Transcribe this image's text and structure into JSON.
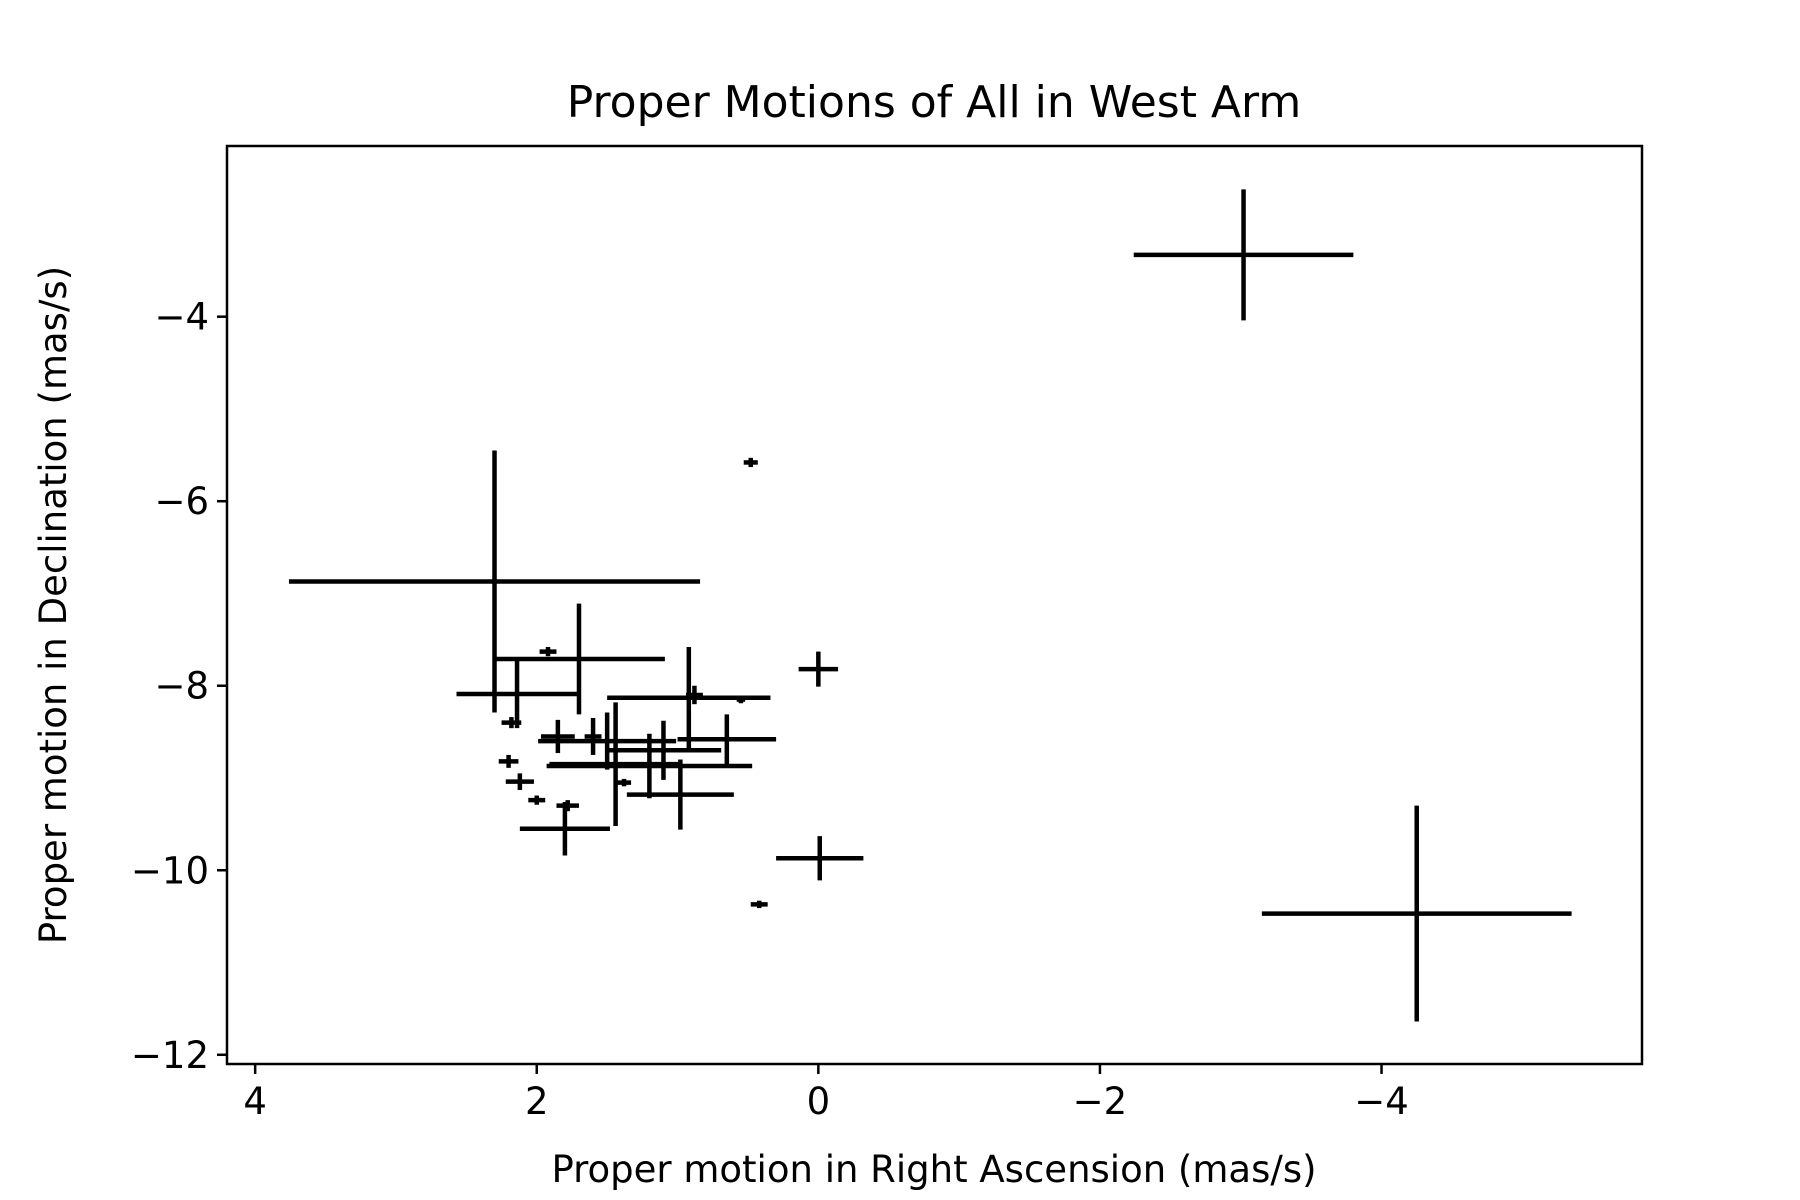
{
  "chart_data": {
    "type": "scatter",
    "subtype": "errorbar",
    "title": "Proper Motions of All in West Arm",
    "xlabel": "Proper motion in Right Ascension (mas/s)",
    "ylabel": "Proper motion in Declination (mas/s)",
    "xlim": [
      4.2,
      -5.85
    ],
    "ylim": [
      -12.1,
      -2.15
    ],
    "x_inverted": true,
    "grid": false,
    "legend": false,
    "color": "#000000",
    "xticks": [
      4,
      2,
      0,
      -2,
      -4
    ],
    "yticks": [
      -4,
      -6,
      -8,
      -10,
      -12
    ],
    "xtick_labels": [
      "4",
      "2",
      "0",
      "−2",
      "−4"
    ],
    "ytick_labels": [
      "−4",
      "−6",
      "−8",
      "−10",
      "−12"
    ],
    "points": [
      {
        "x": -3.02,
        "y": -3.33,
        "xerr": 0.78,
        "yerr": 0.71
      },
      {
        "x": -4.25,
        "y": -10.47,
        "xerr": 1.1,
        "yerr": 1.17
      },
      {
        "x": 2.3,
        "y": -6.87,
        "xerr": 1.46,
        "yerr": 1.42
      },
      {
        "x": 1.7,
        "y": -7.71,
        "xerr": 0.61,
        "yerr": 0.6
      },
      {
        "x": 2.14,
        "y": -8.09,
        "xerr": 0.43,
        "yerr": 0.37
      },
      {
        "x": 0.92,
        "y": -8.13,
        "xerr": 0.58,
        "yerr": 0.55
      },
      {
        "x": 1.5,
        "y": -8.6,
        "xerr": 0.49,
        "yerr": 0.31
      },
      {
        "x": 0.65,
        "y": -8.58,
        "xerr": 0.35,
        "yerr": 0.27
      },
      {
        "x": 1.1,
        "y": -8.7,
        "xerr": 0.41,
        "yerr": 0.32
      },
      {
        "x": 1.2,
        "y": -8.87,
        "xerr": 0.73,
        "yerr": 0.35
      },
      {
        "x": 1.44,
        "y": -8.85,
        "xerr": 0.47,
        "yerr": 0.67
      },
      {
        "x": 0.98,
        "y": -9.18,
        "xerr": 0.38,
        "yerr": 0.38
      },
      {
        "x": 1.8,
        "y": -9.55,
        "xerr": 0.32,
        "yerr": 0.29
      },
      {
        "x": 0.0,
        "y": -7.82,
        "xerr": 0.14,
        "yerr": 0.19
      },
      {
        "x": -0.01,
        "y": -9.87,
        "xerr": 0.31,
        "yerr": 0.24
      },
      {
        "x": 0.48,
        "y": -5.58,
        "xerr": 0.05,
        "yerr": 0.05
      },
      {
        "x": 0.42,
        "y": -10.37,
        "xerr": 0.06,
        "yerr": 0.04
      },
      {
        "x": 1.92,
        "y": -7.63,
        "xerr": 0.06,
        "yerr": 0.05
      },
      {
        "x": 0.88,
        "y": -8.1,
        "xerr": 0.06,
        "yerr": 0.1
      },
      {
        "x": 0.55,
        "y": -8.15,
        "xerr": 0.03,
        "yerr": 0.04
      },
      {
        "x": 2.18,
        "y": -8.4,
        "xerr": 0.07,
        "yerr": 0.06
      },
      {
        "x": 1.85,
        "y": -8.55,
        "xerr": 0.12,
        "yerr": 0.18
      },
      {
        "x": 2.2,
        "y": -8.82,
        "xerr": 0.07,
        "yerr": 0.07
      },
      {
        "x": 2.12,
        "y": -9.04,
        "xerr": 0.1,
        "yerr": 0.09
      },
      {
        "x": 2.0,
        "y": -9.24,
        "xerr": 0.06,
        "yerr": 0.05
      },
      {
        "x": 1.78,
        "y": -9.3,
        "xerr": 0.08,
        "yerr": 0.06
      },
      {
        "x": 1.38,
        "y": -9.05,
        "xerr": 0.05,
        "yerr": 0.04
      },
      {
        "x": 1.6,
        "y": -8.55,
        "xerr": 0.06,
        "yerr": 0.2
      }
    ]
  }
}
